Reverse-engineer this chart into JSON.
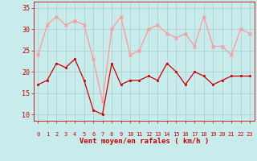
{
  "hours": [
    0,
    1,
    2,
    3,
    4,
    5,
    6,
    7,
    8,
    9,
    10,
    11,
    12,
    13,
    14,
    15,
    16,
    17,
    18,
    19,
    20,
    21,
    22,
    23
  ],
  "wind_avg": [
    17,
    18,
    22,
    21,
    23,
    18,
    11,
    10,
    22,
    17,
    18,
    18,
    19,
    18,
    22,
    20,
    17,
    20,
    19,
    17,
    18,
    19,
    19,
    19
  ],
  "wind_gust": [
    24,
    31,
    33,
    31,
    32,
    31,
    23,
    13,
    30,
    33,
    24,
    25,
    30,
    31,
    29,
    28,
    29,
    26,
    33,
    26,
    26,
    24,
    30,
    29
  ],
  "avg_color": "#cc0000",
  "gust_color": "#ff9999",
  "bg_color": "#c8ecec",
  "grid_color": "#aacccc",
  "xlabel": "Vent moyen/en rafales ( km/h )",
  "yticks": [
    10,
    15,
    20,
    25,
    30,
    35
  ],
  "ylim": [
    8.5,
    36.5
  ],
  "xlim": [
    -0.5,
    23.5
  ],
  "label_color": "#cc0000"
}
